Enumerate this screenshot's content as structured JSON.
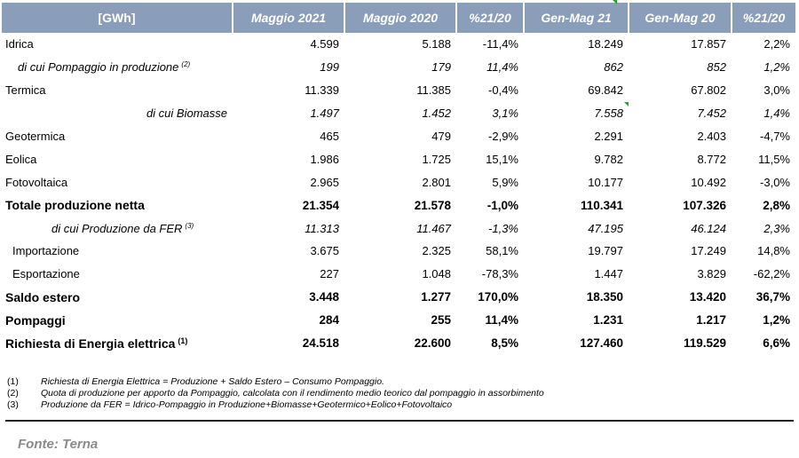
{
  "table": {
    "headers": [
      "[GWh]",
      "Maggio 2021",
      "Maggio 2020",
      "%21/20",
      "Gen-Mag 21",
      "Gen-Mag 20",
      "%21/20"
    ],
    "rows": [
      {
        "label": "Idrica",
        "sup": "",
        "values": [
          "4.599",
          "5.188",
          "-11,4%",
          "18.249",
          "17.857",
          "2,2%"
        ]
      },
      {
        "label": "di cui Pompaggio in produzione",
        "sup": "(2)",
        "values": [
          "199",
          "179",
          "11,4%",
          "862",
          "852",
          "1,2%"
        ]
      },
      {
        "label": "Termica",
        "sup": "",
        "values": [
          "11.339",
          "11.385",
          "-0,4%",
          "69.842",
          "67.802",
          "3,0%"
        ]
      },
      {
        "label": "di cui Biomasse",
        "sup": "",
        "values": [
          "1.497",
          "1.452",
          "3,1%",
          "7.558",
          "7.452",
          "1,4%"
        ]
      },
      {
        "label": "Geotermica",
        "sup": "",
        "values": [
          "465",
          "479",
          "-2,9%",
          "2.291",
          "2.403",
          "-4,7%"
        ]
      },
      {
        "label": "Eolica",
        "sup": "",
        "values": [
          "1.986",
          "1.725",
          "15,1%",
          "9.782",
          "8.772",
          "11,5%"
        ]
      },
      {
        "label": "Fotovoltaica",
        "sup": "",
        "values": [
          "2.965",
          "2.801",
          "5,9%",
          "10.177",
          "10.492",
          "-3,0%"
        ]
      },
      {
        "label": "Totale produzione netta",
        "sup": "",
        "values": [
          "21.354",
          "21.578",
          "-1,0%",
          "110.341",
          "107.326",
          "2,8%"
        ]
      },
      {
        "label": "di cui Produzione da FER",
        "sup": "(3)",
        "values": [
          "11.313",
          "11.467",
          "-1,3%",
          "47.195",
          "46.124",
          "2,3%"
        ]
      },
      {
        "label": "Importazione",
        "sup": "",
        "values": [
          "3.675",
          "2.325",
          "58,1%",
          "19.797",
          "17.249",
          "14,8%"
        ]
      },
      {
        "label": "Esportazione",
        "sup": "",
        "values": [
          "227",
          "1.048",
          "-78,3%",
          "1.447",
          "3.829",
          "-62,2%"
        ]
      },
      {
        "label": "Saldo estero",
        "sup": "",
        "values": [
          "3.448",
          "1.277",
          "170,0%",
          "18.350",
          "13.420",
          "36,7%"
        ]
      },
      {
        "label": "Pompaggi",
        "sup": "",
        "values": [
          "284",
          "255",
          "11,4%",
          "1.231",
          "1.217",
          "1,2%"
        ]
      },
      {
        "label": "Richiesta di Energia elettrica",
        "sup": "(1)",
        "values": [
          "24.518",
          "22.600",
          "8,5%",
          "127.460",
          "119.529",
          "6,6%"
        ]
      }
    ]
  },
  "notes": [
    {
      "num": "(1)",
      "text": "Richiesta di Energia Elettrica = Produzione + Saldo Estero – Consumo Pompaggio."
    },
    {
      "num": "(2)",
      "text": "Quota di produzione per apporto da Pompaggio, calcolata con il rendimento medio teorico dal pompaggio in assorbimento"
    },
    {
      "num": "(3)",
      "text": "Produzione da FER = Idrico-Pompaggio in Produzione+Biomasse+Geotermico+Eolico+Fotovoltaico"
    }
  ],
  "source": "Fonte: Terna",
  "colors": {
    "header_bg": "#8a9eb9",
    "header_text": "#ffffff",
    "source_text": "#8a8a8a",
    "marker": "#2e9d3f"
  }
}
